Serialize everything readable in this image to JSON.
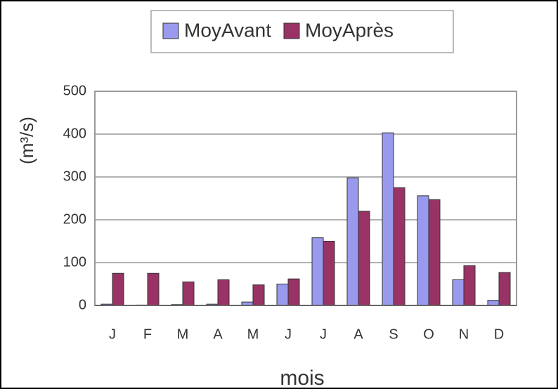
{
  "chart_data": {
    "type": "bar",
    "categories": [
      "J",
      "F",
      "M",
      "A",
      "M",
      "J",
      "J",
      "A",
      "S",
      "O",
      "N",
      "D"
    ],
    "series": [
      {
        "name": "MoyAvant",
        "color": "#9999ee",
        "values": [
          3,
          1,
          2,
          3,
          8,
          50,
          158,
          298,
          403,
          256,
          60,
          12
        ]
      },
      {
        "name": "MoyAprès",
        "color": "#993366",
        "values": [
          75,
          75,
          55,
          60,
          48,
          62,
          150,
          220,
          275,
          247,
          93,
          77
        ]
      }
    ],
    "ylabel": "(m³/s)",
    "xlabel": "mois",
    "ylim": [
      0,
      500
    ],
    "yticks": [
      0,
      100,
      200,
      300,
      400,
      500
    ],
    "grid": true,
    "legend": "top"
  }
}
